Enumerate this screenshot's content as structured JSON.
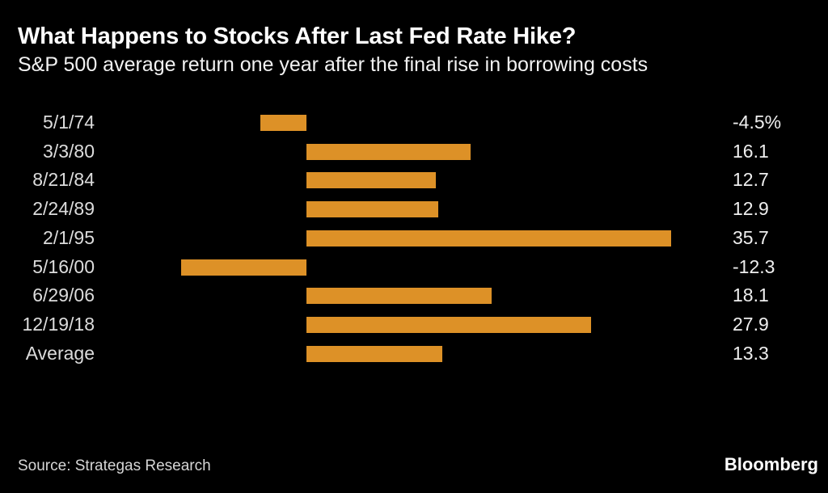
{
  "header": {
    "title": "What Happens to Stocks After Last Fed Rate Hike?",
    "subtitle": "S&P 500 average return one year after the final rise in borrowing costs"
  },
  "chart_data": {
    "type": "bar",
    "orientation": "horizontal",
    "title": "What Happens to Stocks After Last Fed Rate Hike?",
    "subtitle": "S&P 500 average return one year after the final rise in borrowing costs",
    "categories": [
      "5/1/74",
      "3/3/80",
      "8/21/84",
      "2/24/89",
      "2/1/95",
      "5/16/00",
      "6/29/06",
      "12/19/18",
      "Average"
    ],
    "values": [
      -4.5,
      16.1,
      12.7,
      12.9,
      35.7,
      -12.3,
      18.1,
      27.9,
      13.3
    ],
    "value_labels": [
      "-4.5%",
      "16.1",
      "12.7",
      "12.9",
      "35.7",
      "-12.3",
      "18.1",
      "27.9",
      "13.3"
    ],
    "unit": "percent",
    "xlabel": "",
    "ylabel": "",
    "xlim": [
      -12.3,
      35.7
    ],
    "grid": false,
    "legend": false,
    "colors": {
      "bar": "#dd9127",
      "category_label": "#dcdcdc",
      "value_label": "#eeeeee",
      "background": "#000000"
    }
  },
  "footer": {
    "source": "Source: Strategas Research",
    "brand": "Bloomberg"
  }
}
